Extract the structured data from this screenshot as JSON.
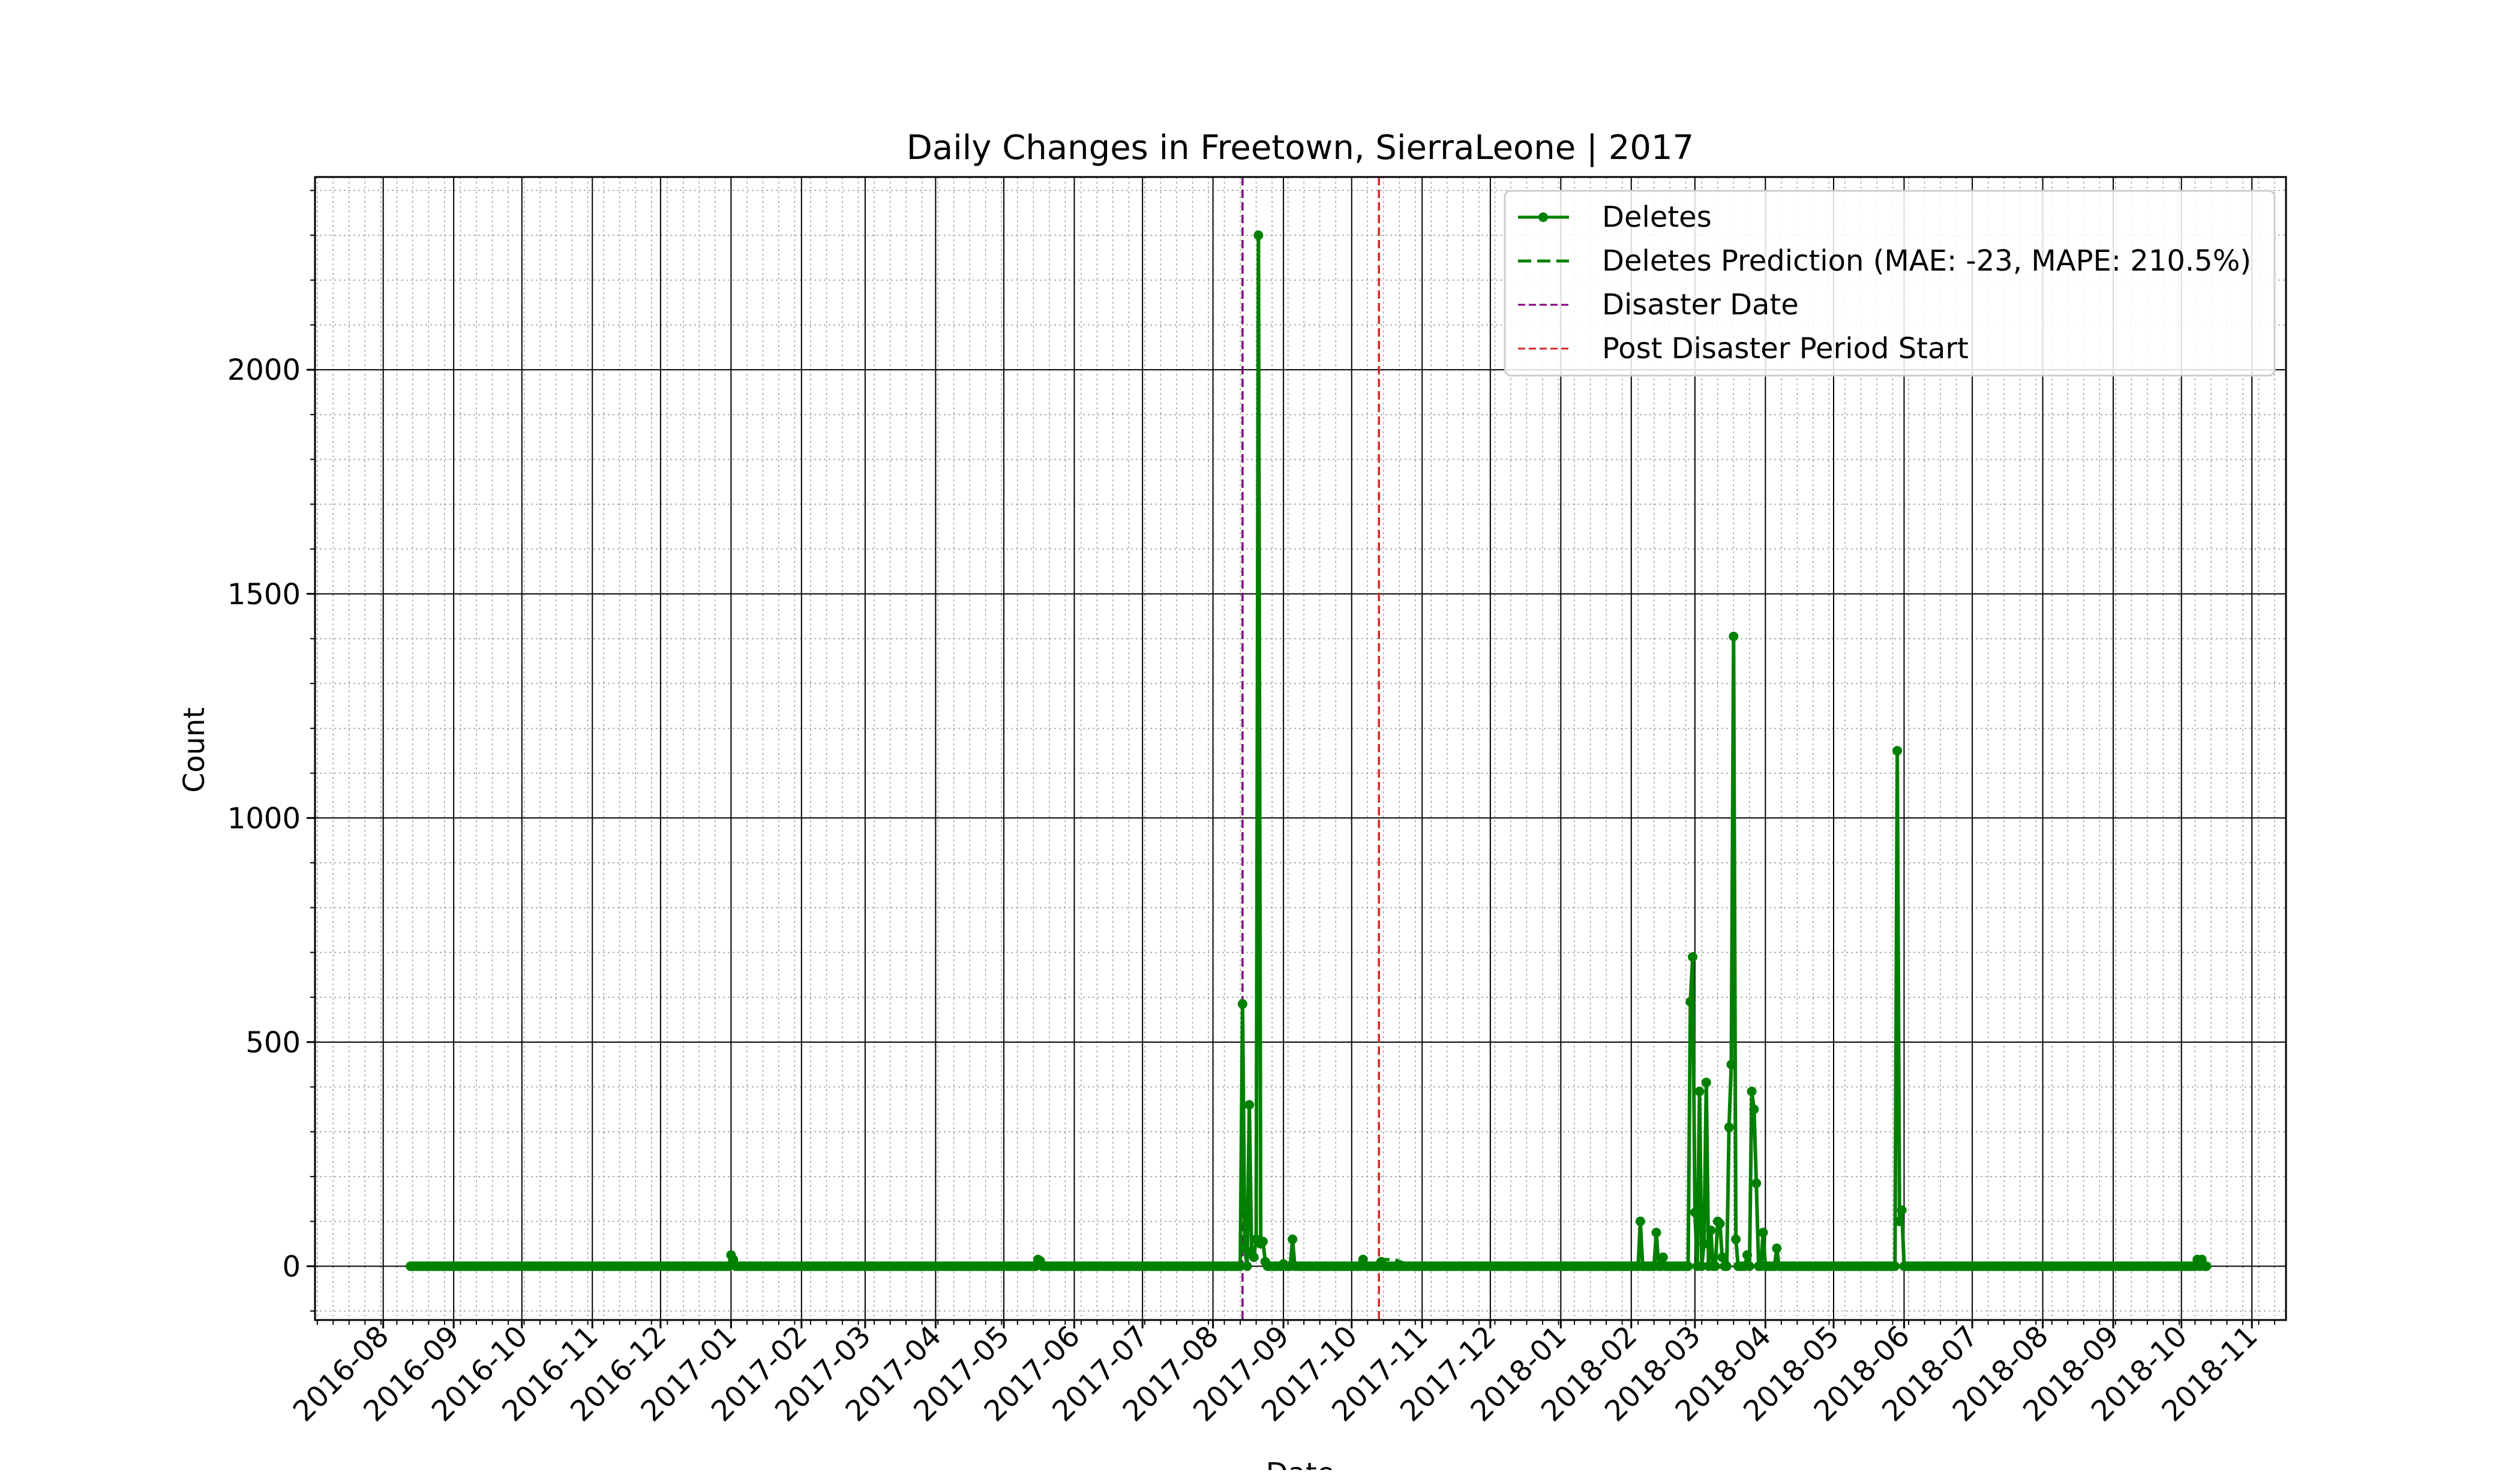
{
  "chart_data": {
    "type": "line",
    "title": "Daily Changes in Freetown, SierraLeone | 2017",
    "xlabel": "Date",
    "ylabel": "Count",
    "x_axis_type": "date",
    "xlim": [
      "2016-07-02",
      "2018-11-16"
    ],
    "ylim": [
      -120,
      2430
    ],
    "y_ticks": [
      0,
      500,
      1000,
      1500,
      2000
    ],
    "x_tick_labels": [
      "2016-08",
      "2016-09",
      "2016-10",
      "2016-11",
      "2016-12",
      "2017-01",
      "2017-02",
      "2017-03",
      "2017-04",
      "2017-05",
      "2017-06",
      "2017-07",
      "2017-08",
      "2017-09",
      "2017-10",
      "2017-11",
      "2017-12",
      "2018-01",
      "2018-02",
      "2018-03",
      "2018-04",
      "2018-05",
      "2018-06",
      "2018-07",
      "2018-08",
      "2018-09",
      "2018-10",
      "2018-11"
    ],
    "grid": "major solid, minor dotted",
    "legend_position": "upper right",
    "colors": {
      "deletes": "#008000",
      "disaster": "#800080",
      "post_disaster": "#d62728"
    },
    "series": [
      {
        "name": "Deletes",
        "style": "solid line with dot markers",
        "baseline_range": [
          "2016-08-13",
          "2018-10-12"
        ],
        "baseline_value": 0,
        "points": [
          [
            "2017-01-01",
            25
          ],
          [
            "2017-01-02",
            15
          ],
          [
            "2017-05-16",
            15
          ],
          [
            "2017-05-17",
            12
          ],
          [
            "2017-08-14",
            585
          ],
          [
            "2017-08-15",
            40
          ],
          [
            "2017-08-17",
            360
          ],
          [
            "2017-08-18",
            30
          ],
          [
            "2017-08-19",
            20
          ],
          [
            "2017-08-20",
            60
          ],
          [
            "2017-08-21",
            2300
          ],
          [
            "2017-08-22",
            50
          ],
          [
            "2017-08-23",
            55
          ],
          [
            "2017-08-24",
            10
          ],
          [
            "2017-09-01",
            5
          ],
          [
            "2017-09-05",
            60
          ],
          [
            "2017-10-06",
            15
          ],
          [
            "2017-10-14",
            10
          ],
          [
            "2018-02-05",
            100
          ],
          [
            "2018-02-12",
            75
          ],
          [
            "2018-02-15",
            20
          ],
          [
            "2018-02-27",
            590
          ],
          [
            "2018-02-28",
            690
          ],
          [
            "2018-03-01",
            120
          ],
          [
            "2018-03-03",
            390
          ],
          [
            "2018-03-05",
            50
          ],
          [
            "2018-03-06",
            410
          ],
          [
            "2018-03-08",
            80
          ],
          [
            "2018-03-11",
            100
          ],
          [
            "2018-03-12",
            95
          ],
          [
            "2018-03-13",
            20
          ],
          [
            "2018-03-16",
            310
          ],
          [
            "2018-03-17",
            450
          ],
          [
            "2018-03-18",
            1405
          ],
          [
            "2018-03-19",
            60
          ],
          [
            "2018-03-24",
            25
          ],
          [
            "2018-03-26",
            390
          ],
          [
            "2018-03-27",
            350
          ],
          [
            "2018-03-28",
            185
          ],
          [
            "2018-03-31",
            75
          ],
          [
            "2018-04-06",
            40
          ],
          [
            "2018-05-29",
            1150
          ],
          [
            "2018-05-30",
            100
          ],
          [
            "2018-05-31",
            125
          ],
          [
            "2018-10-08",
            15
          ],
          [
            "2018-10-10",
            15
          ]
        ]
      },
      {
        "name": "Deletes Prediction (MAE: -23, MAPE: 210.5%)",
        "style": "dashed line",
        "points": [
          [
            "2017-10-12",
            10
          ],
          [
            "2017-10-15",
            15
          ],
          [
            "2017-10-20",
            15
          ],
          [
            "2017-10-25",
            5
          ],
          [
            "2017-11-01",
            3
          ],
          [
            "2017-12-01",
            2
          ],
          [
            "2018-01-01",
            2
          ],
          [
            "2018-02-01",
            2
          ]
        ]
      }
    ],
    "vertical_lines": [
      {
        "name": "Disaster Date",
        "x": "2017-08-14",
        "color": "#800080",
        "style": "dashed"
      },
      {
        "name": "Post Disaster Period Start",
        "x": "2017-10-13",
        "color": "#d62728",
        "style": "dashed"
      }
    ]
  }
}
